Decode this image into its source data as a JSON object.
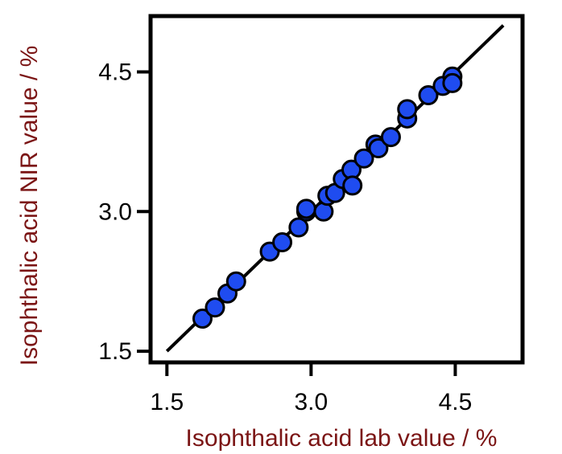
{
  "chart_data": {
    "type": "scatter",
    "xlabel": "Isophthalic acid lab value / %",
    "ylabel": "Isophthalic acid NIR value / %",
    "xlim": [
      1.33,
      5.2
    ],
    "ylim": [
      1.38,
      5.1
    ],
    "xticks": [
      "1.5",
      "3.0",
      "4.5"
    ],
    "yticks": [
      "1.5",
      "3.0",
      "4.5"
    ],
    "grid": false,
    "reference_line": {
      "x": [
        1.5,
        5.0
      ],
      "y": [
        1.5,
        5.0
      ]
    },
    "series": [
      {
        "x": [
          1.87,
          2.0,
          2.13,
          2.22,
          2.57,
          2.7,
          2.87,
          2.95,
          2.95,
          3.13,
          3.17,
          3.25,
          3.33,
          3.42,
          3.43,
          3.55,
          3.67,
          3.7,
          3.83,
          4.0,
          4.0,
          4.22,
          4.37,
          4.47,
          4.47
        ],
        "y": [
          1.85,
          1.97,
          2.12,
          2.25,
          2.57,
          2.67,
          2.83,
          3.0,
          3.03,
          3.0,
          3.17,
          3.2,
          3.35,
          3.45,
          3.28,
          3.57,
          3.72,
          3.68,
          3.8,
          4.0,
          4.1,
          4.25,
          4.35,
          4.45,
          4.38
        ]
      }
    ]
  },
  "colors": {
    "marker_fill": "#1f4cf0",
    "marker_edge": "#000000",
    "axis_label": "#7b1515",
    "line": "#000000"
  }
}
